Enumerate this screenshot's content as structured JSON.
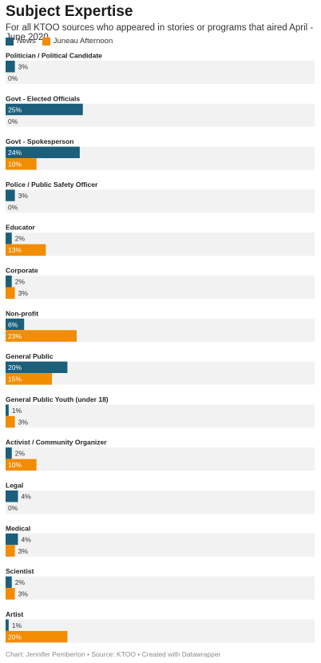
{
  "chart_data": {
    "type": "bar",
    "orientation": "horizontal",
    "title": "Subject Expertise",
    "subtitle": "For all KTOO sources who appeared in stories or programs that aired April - June 2020.",
    "xlim": [
      0,
      100
    ],
    "grid": false,
    "legend_placement": "top-left",
    "series": [
      {
        "name": "News",
        "color": "#1c5f7a",
        "values": [
          3,
          25,
          24,
          3,
          2,
          2,
          6,
          20,
          1,
          2,
          4,
          4,
          2,
          1
        ]
      },
      {
        "name": "Juneau Afternoon",
        "color": "#f28c00",
        "values": [
          0,
          0,
          10,
          0,
          13,
          3,
          23,
          15,
          3,
          10,
          0,
          3,
          3,
          20
        ]
      }
    ],
    "categories": [
      "Politician / Political Candidate",
      "Govt - Elected Officials",
      "Govt - Spokesperson",
      "Police / Public Safety Officer",
      "Educator",
      "Corporate",
      "Non-profit",
      "General Public",
      "General Public Youth (under 18)",
      "Activist / Community Organizer",
      "Legal",
      "Medical",
      "Scientist",
      "Artist"
    ],
    "value_suffix": "%"
  },
  "footer": "Chart: Jennifer Pemberton • Source: KTOO • Created with Datawrapper",
  "colors": {
    "news": "#1c5f7a",
    "juneau": "#f28c00",
    "track": "#f2f2f2"
  }
}
